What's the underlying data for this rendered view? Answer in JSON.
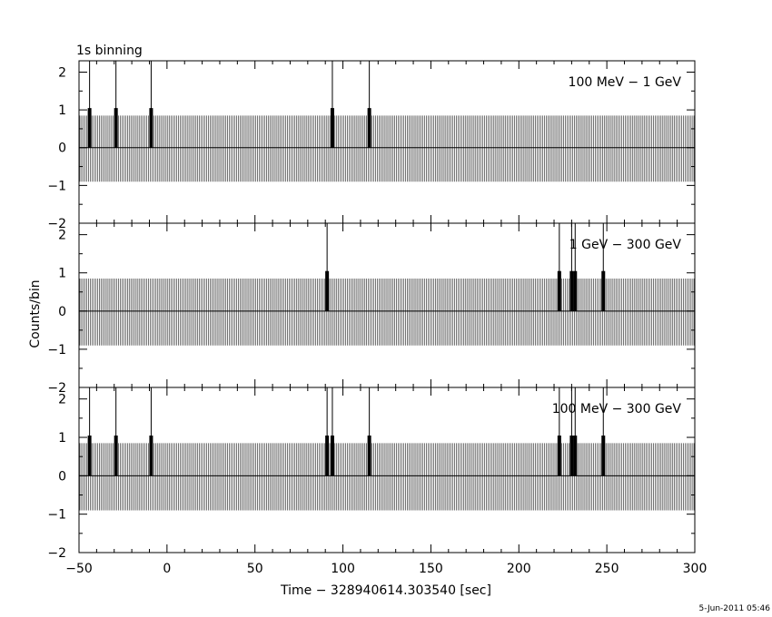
{
  "figure": {
    "binning_label": "1s binning",
    "ylabel": "Counts/bin",
    "xlabel": "Time − 328940614.303540 [sec]",
    "footer_date": "5-Jun-2011 05:46"
  },
  "chart_data": [
    {
      "type": "bar",
      "title": "100 MeV − 1 GeV",
      "xlim": [
        -50,
        300
      ],
      "ylim": [
        -2,
        2.3
      ],
      "xticks": [
        -50,
        0,
        50,
        100,
        150,
        200,
        250,
        300
      ],
      "yticks": [
        -2,
        -1,
        0,
        1,
        2
      ],
      "error_bar_pattern": {
        "bin_width_sec": 1,
        "upper": 0.85,
        "lower": -0.9
      },
      "events": [
        {
          "time": -44,
          "count": 1,
          "err_upper": 2.3
        },
        {
          "time": -29,
          "count": 1,
          "err_upper": 2.3
        },
        {
          "time": -9,
          "count": 1,
          "err_upper": 2.3
        },
        {
          "time": 94,
          "count": 1,
          "err_upper": 2.3
        },
        {
          "time": 115,
          "count": 1,
          "err_upper": 2.3
        }
      ]
    },
    {
      "type": "bar",
      "title": "1 GeV − 300 GeV",
      "xlim": [
        -50,
        300
      ],
      "ylim": [
        -2,
        2.3
      ],
      "xticks": [
        -50,
        0,
        50,
        100,
        150,
        200,
        250,
        300
      ],
      "yticks": [
        -2,
        -1,
        0,
        1,
        2
      ],
      "error_bar_pattern": {
        "bin_width_sec": 1,
        "upper": 0.85,
        "lower": -0.9
      },
      "events": [
        {
          "time": 91,
          "count": 1,
          "err_upper": 2.3
        },
        {
          "time": 223,
          "count": 1,
          "err_upper": 2.3
        },
        {
          "time": 230,
          "count": 1,
          "err_upper": 2.3
        },
        {
          "time": 232,
          "count": 1,
          "err_upper": 2.3
        },
        {
          "time": 248,
          "count": 1,
          "err_upper": 2.3
        }
      ]
    },
    {
      "type": "bar",
      "title": "100 MeV − 300 GeV",
      "xlim": [
        -50,
        300
      ],
      "ylim": [
        -2,
        2.3
      ],
      "xticks": [
        -50,
        0,
        50,
        100,
        150,
        200,
        250,
        300
      ],
      "yticks": [
        -2,
        -1,
        0,
        1,
        2
      ],
      "error_bar_pattern": {
        "bin_width_sec": 1,
        "upper": 0.85,
        "lower": -0.9
      },
      "events": [
        {
          "time": -44,
          "count": 1,
          "err_upper": 2.3
        },
        {
          "time": -29,
          "count": 1,
          "err_upper": 2.3
        },
        {
          "time": -9,
          "count": 1,
          "err_upper": 2.3
        },
        {
          "time": 91,
          "count": 1,
          "err_upper": 2.3
        },
        {
          "time": 94,
          "count": 1,
          "err_upper": 2.3
        },
        {
          "time": 115,
          "count": 1,
          "err_upper": 2.3
        },
        {
          "time": 223,
          "count": 1,
          "err_upper": 2.3
        },
        {
          "time": 230,
          "count": 1,
          "err_upper": 2.3
        },
        {
          "time": 232,
          "count": 1,
          "err_upper": 2.3
        },
        {
          "time": 248,
          "count": 1,
          "err_upper": 2.3
        }
      ]
    }
  ]
}
